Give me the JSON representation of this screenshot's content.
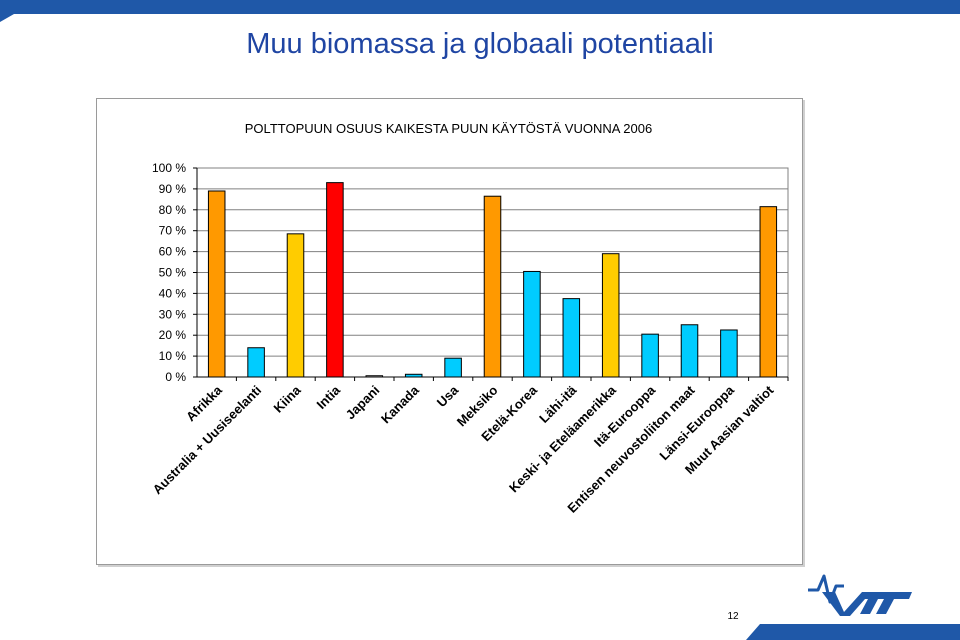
{
  "slide": {
    "title": "Muu biomassa ja globaali potentiaali",
    "page_number": "12",
    "logo_text": "VTT"
  },
  "colors": {
    "accent_blue": "#1f58a8",
    "bar_orange": "#ff9900",
    "bar_blue": "#00ccff",
    "bar_yellow": "#ffcc00",
    "bar_red": "#ff0000",
    "bar_white": "#ffffff"
  },
  "chart_data": {
    "type": "bar",
    "title": "POLTTOPUUN OSUUS KAIKESTA PUUN KÄYTÖSTÄ VUONNA 2006",
    "xlabel": "",
    "ylabel": "",
    "ylim": [
      0,
      100
    ],
    "yticks": [
      "0 %",
      "10 %",
      "20 %",
      "30 %",
      "40 %",
      "50 %",
      "60 %",
      "70 %",
      "80 %",
      "90 %",
      "100 %"
    ],
    "grid": true,
    "legend": "none",
    "categories": [
      "Afrikka",
      "Australia + Uusiseelanti",
      "Kiina",
      "Intia",
      "Japani",
      "Kanada",
      "Usa",
      "Meksiko",
      "Etelä-Korea",
      "Lähi-itä",
      "Keski- ja Eteläamerikka",
      "Itä-Eurooppa",
      "Entisen neuvostoliiton maat",
      "Länsi-Eurooppa",
      "Muut Aasian valtiot"
    ],
    "values": [
      89,
      14,
      68.5,
      93,
      0.6,
      1.3,
      9,
      86.5,
      50.5,
      37.5,
      59,
      20.5,
      25,
      22.5,
      81.5
    ],
    "bar_colors": [
      "#ff9900",
      "#00ccff",
      "#ffcc00",
      "#ff0000",
      "#ffffff",
      "#00ccff",
      "#00ccff",
      "#ff9900",
      "#00ccff",
      "#00ccff",
      "#ffcc00",
      "#00ccff",
      "#00ccff",
      "#00ccff",
      "#ff9900"
    ]
  }
}
